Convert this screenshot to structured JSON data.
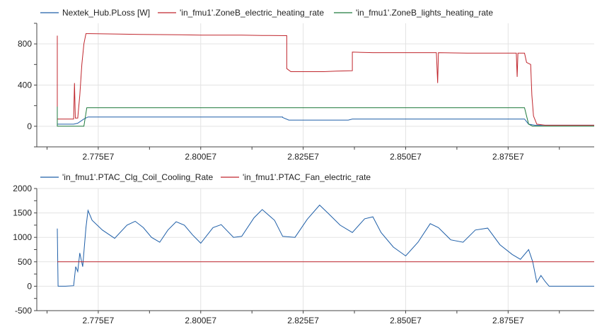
{
  "chart_data": [
    {
      "type": "line",
      "legend_position": "top",
      "grid": true,
      "x_tick_labels": [
        "2.775E7",
        "2.800E7",
        "2.825E7",
        "2.850E7",
        "2.875E7"
      ],
      "x_ticks": [
        27750000,
        28000000,
        28250000,
        28500000,
        28750000
      ],
      "xlim": [
        27600000,
        28960000
      ],
      "y_tick_labels": [
        "800",
        "400",
        "0"
      ],
      "y_ticks": [
        800,
        400,
        0
      ],
      "ylim": [
        -200,
        1000
      ],
      "series": [
        {
          "name": "Nextek_Hub.PLoss [W]",
          "color": "#1f5fa8",
          "points": [
            [
              27650000,
              80
            ],
            [
              27650000,
              20
            ],
            [
              27690000,
              20
            ],
            [
              27700000,
              30
            ],
            [
              27715000,
              70
            ],
            [
              27725000,
              90
            ],
            [
              28200000,
              90
            ],
            [
              28200000,
              85
            ],
            [
              28215000,
              60
            ],
            [
              28360000,
              60
            ],
            [
              28370000,
              70
            ],
            [
              28790000,
              70
            ],
            [
              28800000,
              20
            ],
            [
              28815000,
              10
            ],
            [
              28960000,
              10
            ]
          ]
        },
        {
          "name": "'in_fmu1'.ZoneB_electric_heating_rate",
          "color": "#c0262d",
          "points": [
            [
              27650000,
              880
            ],
            [
              27650000,
              70
            ],
            [
              27690000,
              70
            ],
            [
              27692000,
              420
            ],
            [
              27694000,
              80
            ],
            [
              27700000,
              80
            ],
            [
              27705000,
              300
            ],
            [
              27710000,
              600
            ],
            [
              27715000,
              800
            ],
            [
              27720000,
              900
            ],
            [
              27730000,
              900
            ],
            [
              27800000,
              895
            ],
            [
              27850000,
              892
            ],
            [
              27900000,
              890
            ],
            [
              27950000,
              888
            ],
            [
              28000000,
              885
            ],
            [
              28050000,
              885
            ],
            [
              28100000,
              885
            ],
            [
              28150000,
              882
            ],
            [
              28210000,
              880
            ],
            [
              28210000,
              560
            ],
            [
              28220000,
              530
            ],
            [
              28300000,
              530
            ],
            [
              28330000,
              535
            ],
            [
              28370000,
              540
            ],
            [
              28370000,
              720
            ],
            [
              28420000,
              715
            ],
            [
              28500000,
              715
            ],
            [
              28575000,
              715
            ],
            [
              28578000,
              420
            ],
            [
              28580000,
              715
            ],
            [
              28650000,
              710
            ],
            [
              28700000,
              710
            ],
            [
              28770000,
              710
            ],
            [
              28772000,
              480
            ],
            [
              28774000,
              710
            ],
            [
              28790000,
              710
            ],
            [
              28795000,
              620
            ],
            [
              28805000,
              600
            ],
            [
              28808000,
              300
            ],
            [
              28812000,
              100
            ],
            [
              28820000,
              20
            ],
            [
              28840000,
              10
            ],
            [
              28960000,
              10
            ]
          ]
        },
        {
          "name": "'in_fmu1'.ZoneB_lights_heating_rate",
          "color": "#1e7a3c",
          "points": [
            [
              27650000,
              190
            ],
            [
              27650000,
              0
            ],
            [
              27715000,
              0
            ],
            [
              27722000,
              180
            ],
            [
              28790000,
              180
            ],
            [
              28800000,
              20
            ],
            [
              28810000,
              0
            ],
            [
              28960000,
              0
            ]
          ]
        }
      ]
    },
    {
      "type": "line",
      "legend_position": "top",
      "grid": true,
      "x_tick_labels": [
        "2.775E7",
        "2.800E7",
        "2.825E7",
        "2.850E7",
        "2.875E7"
      ],
      "x_ticks": [
        27750000,
        28000000,
        28250000,
        28500000,
        28750000
      ],
      "xlim": [
        27600000,
        28960000
      ],
      "y_tick_labels": [
        "2000",
        "1500",
        "1000",
        "500",
        "0",
        "-500"
      ],
      "y_ticks": [
        2000,
        1500,
        1000,
        500,
        0,
        -500
      ],
      "ylim": [
        -500,
        2000
      ],
      "series": [
        {
          "name": "'in_fmu1'.PTAC_Clg_Coil_Cooling_Rate",
          "color": "#1f5fa8",
          "points": [
            [
              27650000,
              1180
            ],
            [
              27652000,
              0
            ],
            [
              27670000,
              0
            ],
            [
              27690000,
              10
            ],
            [
              27695000,
              400
            ],
            [
              27700000,
              300
            ],
            [
              27705000,
              680
            ],
            [
              27712000,
              400
            ],
            [
              27720000,
              1200
            ],
            [
              27725000,
              1550
            ],
            [
              27735000,
              1350
            ],
            [
              27760000,
              1150
            ],
            [
              27790000,
              980
            ],
            [
              27820000,
              1250
            ],
            [
              27840000,
              1330
            ],
            [
              27860000,
              1200
            ],
            [
              27880000,
              1000
            ],
            [
              27900000,
              900
            ],
            [
              27920000,
              1150
            ],
            [
              27940000,
              1320
            ],
            [
              27960000,
              1250
            ],
            [
              27980000,
              1050
            ],
            [
              28000000,
              880
            ],
            [
              28030000,
              1200
            ],
            [
              28050000,
              1260
            ],
            [
              28080000,
              1000
            ],
            [
              28100000,
              1020
            ],
            [
              28130000,
              1400
            ],
            [
              28150000,
              1570
            ],
            [
              28180000,
              1350
            ],
            [
              28200000,
              1020
            ],
            [
              28230000,
              1000
            ],
            [
              28260000,
              1370
            ],
            [
              28290000,
              1660
            ],
            [
              28310000,
              1500
            ],
            [
              28340000,
              1250
            ],
            [
              28370000,
              1100
            ],
            [
              28400000,
              1380
            ],
            [
              28420000,
              1420
            ],
            [
              28440000,
              1100
            ],
            [
              28470000,
              800
            ],
            [
              28500000,
              620
            ],
            [
              28530000,
              900
            ],
            [
              28560000,
              1280
            ],
            [
              28580000,
              1200
            ],
            [
              28610000,
              950
            ],
            [
              28640000,
              900
            ],
            [
              28670000,
              1150
            ],
            [
              28700000,
              1190
            ],
            [
              28730000,
              850
            ],
            [
              28760000,
              650
            ],
            [
              28780000,
              550
            ],
            [
              28800000,
              750
            ],
            [
              28810000,
              500
            ],
            [
              28820000,
              80
            ],
            [
              28830000,
              220
            ],
            [
              28840000,
              100
            ],
            [
              28850000,
              0
            ],
            [
              28960000,
              0
            ]
          ]
        },
        {
          "name": "'in_fmu1'.PTAC_Fan_electric_rate",
          "color": "#c0262d",
          "points": [
            [
              27650000,
              500
            ],
            [
              28960000,
              500
            ]
          ]
        }
      ]
    }
  ]
}
